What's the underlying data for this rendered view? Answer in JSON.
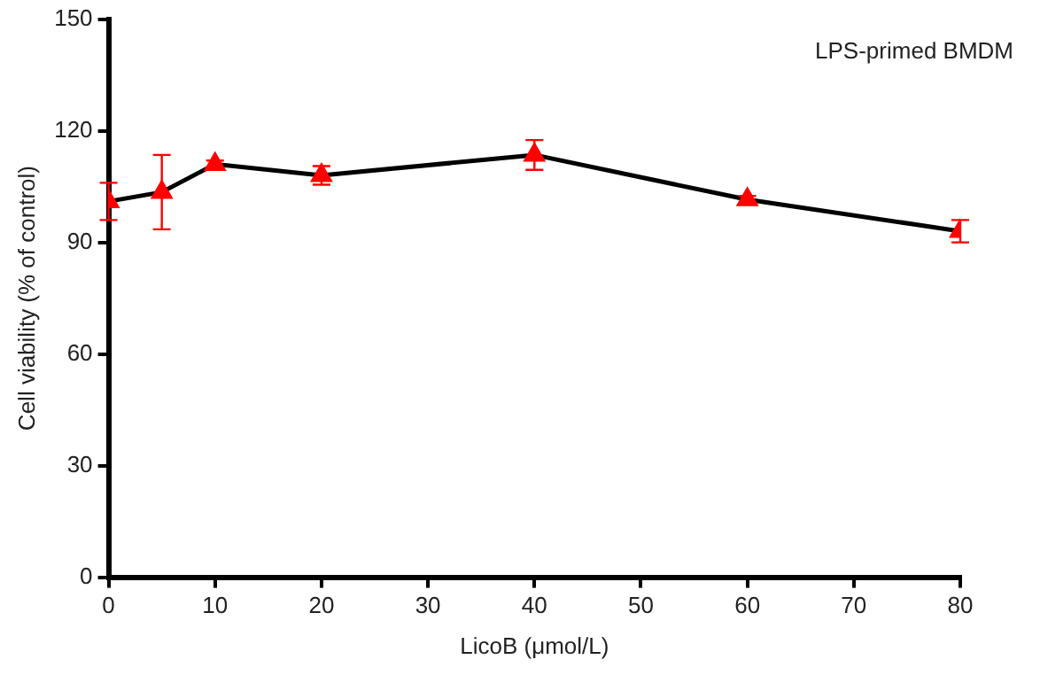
{
  "chart_data": {
    "type": "line",
    "xlabel": "LicoB (μmol/L)",
    "ylabel": "Cell viability (% of control)",
    "annotations": [
      "LPS-primed BMDM"
    ],
    "x": [
      0,
      5,
      10,
      20,
      40,
      60,
      80
    ],
    "series": [
      {
        "color": "#ff0000",
        "values": [
          101,
          103.5,
          111,
          108,
          113.5,
          101.5,
          93
        ],
        "errors": [
          5,
          10,
          1,
          2.5,
          4,
          1,
          3
        ]
      }
    ],
    "xlim": [
      0,
      80
    ],
    "xticks": [
      0,
      10,
      20,
      30,
      40,
      50,
      60,
      70,
      80
    ],
    "ylim": [
      0,
      150
    ],
    "yticks": [
      0,
      30,
      60,
      90,
      120,
      150
    ],
    "grid": false,
    "legend": false,
    "marker": "triangle",
    "line_style": "solid"
  }
}
